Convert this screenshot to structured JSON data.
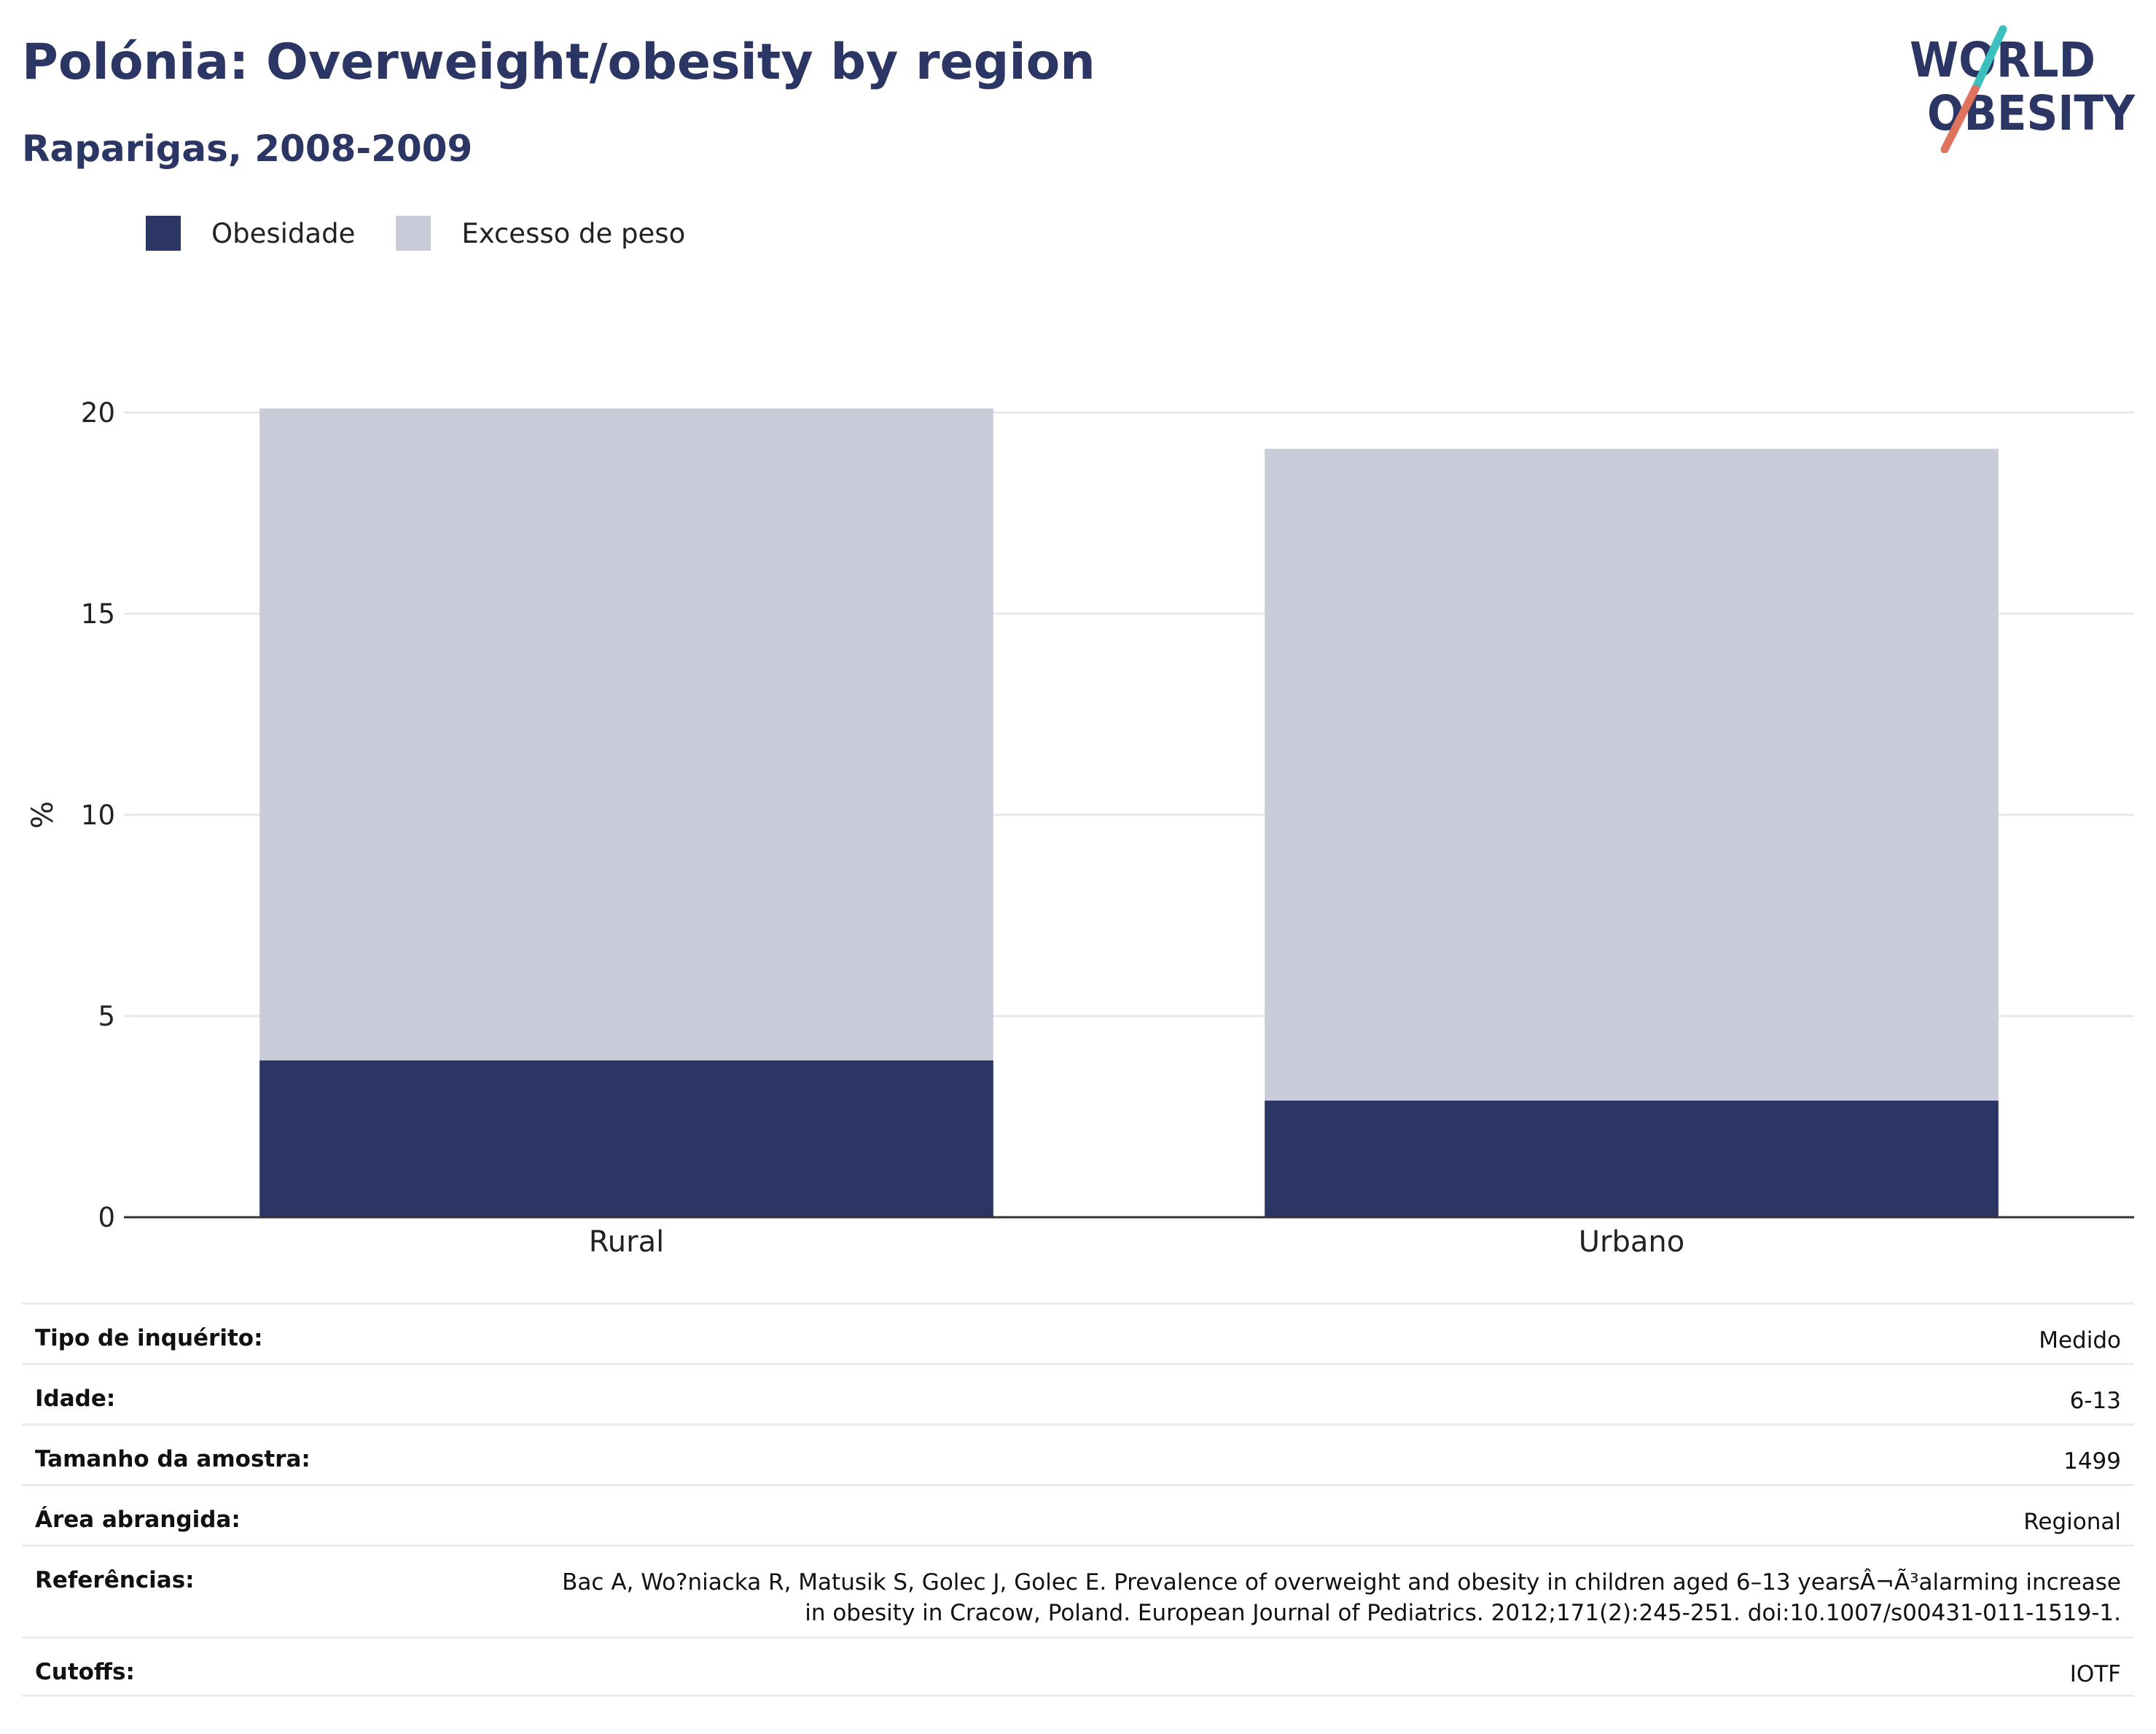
{
  "header": {
    "title": "Polónia: Overweight/obesity by region",
    "subtitle": "Raparigas, 2008-2009"
  },
  "logo": {
    "line1": "WORLD",
    "line2": "OBESITY",
    "colors": {
      "navy": "#2b3664",
      "teal": "#3bbfbf",
      "coral": "#e0735e"
    }
  },
  "legend": {
    "items": [
      {
        "label": "Obesidade",
        "color": "#2b3664"
      },
      {
        "label": "Excesso de peso",
        "color": "#c9ccd8"
      }
    ]
  },
  "chart_data": {
    "type": "bar",
    "stacked": true,
    "categories": [
      "Rural",
      "Urbano"
    ],
    "series": [
      {
        "name": "Obesidade",
        "values": [
          3.9,
          2.9
        ],
        "color": "#2b3664"
      },
      {
        "name": "Excesso de peso",
        "values": [
          16.2,
          16.2
        ],
        "color": "#c9ccd8"
      }
    ],
    "totals": [
      20.1,
      19.1
    ],
    "title": "Polónia: Overweight/obesity by region",
    "subtitle": "Raparigas, 2008-2009",
    "xlabel": "",
    "ylabel": "%",
    "ylim": [
      0,
      20
    ],
    "yticks": [
      0,
      5,
      10,
      15,
      20
    ],
    "grid": true,
    "legend_position": "top-left"
  },
  "meta": {
    "rows": [
      {
        "label": "Tipo de inquérito:",
        "value": "Medido"
      },
      {
        "label": "Idade:",
        "value": "6-13"
      },
      {
        "label": "Tamanho da amostra:",
        "value": "1499"
      },
      {
        "label": "Área abrangida:",
        "value": "Regional"
      },
      {
        "label": "Referências:",
        "value": "Bac A, Wo?niacka R, Matusik S, Golec J, Golec E. Prevalence of overweight and obesity in children aged 6–13 yearsÂ¬Ã³alarming increase in obesity in Cracow, Poland. European Journal of Pediatrics. 2012;171(2):245-251. doi:10.1007/s00431-011-1519-1."
      },
      {
        "label": "Cutoffs:",
        "value": "IOTF"
      }
    ]
  }
}
